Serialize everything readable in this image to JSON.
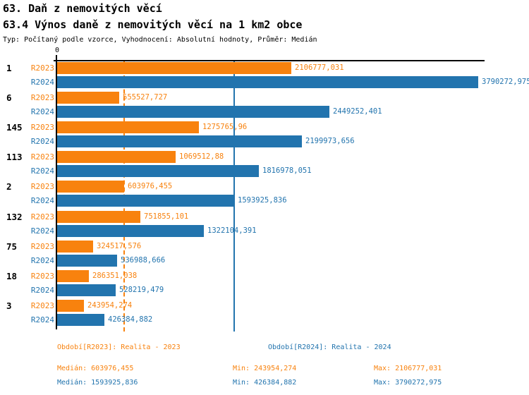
{
  "header": {
    "title_line1": "63. Daň z nemovitých věcí",
    "title_line2": "63.4 Výnos daně z nemovitých věcí na 1 km2 obce",
    "meta": "Typ: Počítaný podle vzorce, Vyhodnocení: Absolutní hodnoty, Průměr: Medián"
  },
  "colors": {
    "r2023_orange": "#F8820E",
    "r2024_blue": "#2274AE",
    "axis_black": "#000000",
    "background": "#FFFFFF"
  },
  "chart_data": {
    "type": "bar",
    "orientation": "horizontal",
    "x_axis": {
      "zero_label": "0",
      "max_value": 3790272.975,
      "grid": "median-lines-only"
    },
    "series": [
      {
        "name": "R2023",
        "color": "#F8820E",
        "period_label": "Období[R2023]: Realita - 2023"
      },
      {
        "name": "R2024",
        "color": "#2274AE",
        "period_label": "Období[R2024]: Realita - 2024"
      }
    ],
    "gridlines": [
      {
        "series": "R2023",
        "value": 603976.455,
        "style": "dashed"
      },
      {
        "series": "R2024",
        "value": 1593925.836,
        "style": "solid"
      }
    ],
    "groups": [
      {
        "id": "1",
        "values": [
          2106777.031,
          3790272.975
        ],
        "labels": [
          "2106777,031",
          "3790272,975"
        ]
      },
      {
        "id": "6",
        "values": [
          555527.727,
          2449252.401
        ],
        "labels": [
          "555527,727",
          "2449252,401"
        ]
      },
      {
        "id": "145",
        "values": [
          1275765.96,
          2199973.656
        ],
        "labels": [
          "1275765,96",
          "2199973,656"
        ]
      },
      {
        "id": "113",
        "values": [
          1069512.88,
          1816978.051
        ],
        "labels": [
          "1069512,88",
          "1816978,051"
        ]
      },
      {
        "id": "2",
        "values": [
          603976.455,
          1593925.836
        ],
        "labels": [
          "603976,455",
          "1593925,836"
        ]
      },
      {
        "id": "132",
        "values": [
          751855.101,
          1322104.391
        ],
        "labels": [
          "751855,101",
          "1322104,391"
        ]
      },
      {
        "id": "75",
        "values": [
          324517.576,
          536988.666
        ],
        "labels": [
          "324517,576",
          "536988,666"
        ]
      },
      {
        "id": "18",
        "values": [
          286351.038,
          528219.479
        ],
        "labels": [
          "286351,038",
          "528219,479"
        ]
      },
      {
        "id": "3",
        "values": [
          243954.274,
          426384.882
        ],
        "labels": [
          "243954,274",
          "426384,882"
        ]
      }
    ],
    "title": "63.4 Výnos daně z nemovitých věcí na 1 km2 obce",
    "stats": {
      "R2023": {
        "median": 603976.455,
        "min": 243954.274,
        "max": 2106777.031
      },
      "R2024": {
        "median": 1593925.836,
        "min": 426384.882,
        "max": 3790272.975
      }
    }
  },
  "footer": {
    "legend_r2023": "Období[R2023]: Realita - 2023",
    "legend_r2024": "Období[R2024]: Realita - 2024",
    "stats_r2023": {
      "median": "Medián: 603976,455",
      "min": "Min: 243954,274",
      "max": "Max: 2106777,031"
    },
    "stats_r2024": {
      "median": "Medián: 1593925,836",
      "min": "Min: 426384,882",
      "max": "Max: 3790272,975"
    }
  }
}
